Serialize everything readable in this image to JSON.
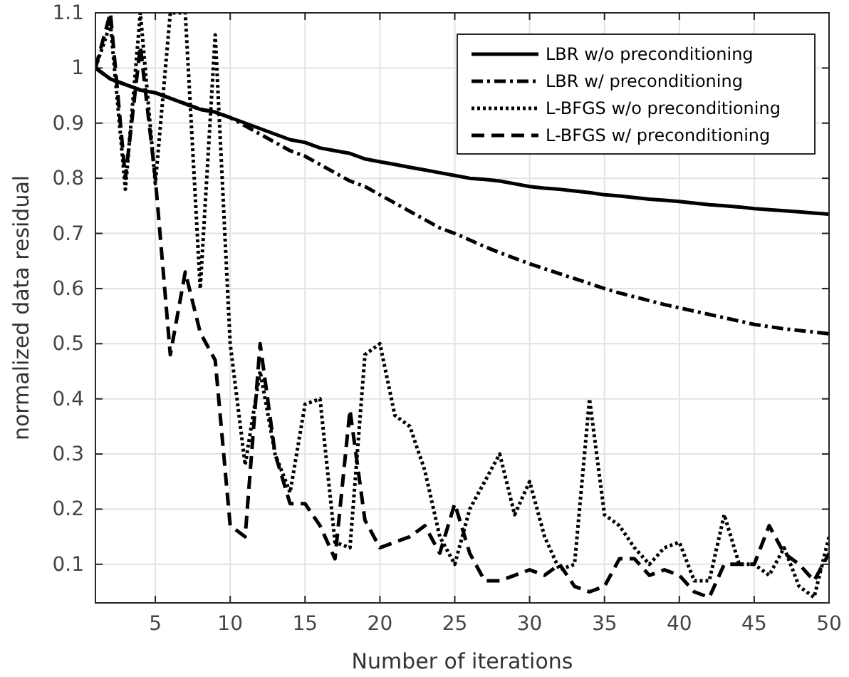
{
  "chart_data": {
    "type": "line",
    "xlabel": "Number of iterations",
    "ylabel": "normalized data residual",
    "x": [
      1,
      2,
      3,
      4,
      5,
      6,
      7,
      8,
      9,
      10,
      11,
      12,
      13,
      14,
      15,
      16,
      17,
      18,
      19,
      20,
      21,
      22,
      23,
      24,
      25,
      26,
      27,
      28,
      29,
      30,
      31,
      32,
      33,
      34,
      35,
      36,
      37,
      38,
      39,
      40,
      41,
      42,
      43,
      44,
      45,
      46,
      47,
      48,
      49,
      50
    ],
    "xlim": [
      1,
      50
    ],
    "xticks": [
      5,
      10,
      15,
      20,
      25,
      30,
      35,
      40,
      45,
      50
    ],
    "ylim": [
      0.03,
      1.1
    ],
    "yticks": [
      0.1,
      0.2,
      0.3,
      0.4,
      0.5,
      0.6,
      0.7,
      0.8,
      0.9,
      1,
      1.1
    ],
    "grid": true,
    "legend": "top right",
    "marker": "none",
    "series": [
      {
        "name": "LBR w/o preconditioning",
        "color": "#000000",
        "line_style": "solid",
        "values": [
          1,
          0.98,
          0.97,
          0.96,
          0.955,
          0.945,
          0.935,
          0.925,
          0.92,
          0.91,
          0.9,
          0.89,
          0.88,
          0.87,
          0.865,
          0.855,
          0.85,
          0.845,
          0.835,
          0.83,
          0.825,
          0.82,
          0.815,
          0.81,
          0.805,
          0.8,
          0.798,
          0.795,
          0.79,
          0.785,
          0.782,
          0.78,
          0.777,
          0.774,
          0.77,
          0.768,
          0.765,
          0.762,
          0.76,
          0.758,
          0.755,
          0.752,
          0.75,
          0.748,
          0.745,
          0.743,
          0.741,
          0.739,
          0.737,
          0.735
        ]
      },
      {
        "name": "LBR w/ preconditioning",
        "color": "#000000",
        "line_style": "dashdot",
        "values": [
          1,
          0.98,
          0.97,
          0.96,
          0.955,
          0.945,
          0.935,
          0.925,
          0.92,
          0.91,
          0.895,
          0.88,
          0.865,
          0.85,
          0.84,
          0.825,
          0.81,
          0.795,
          0.785,
          0.77,
          0.755,
          0.74,
          0.725,
          0.71,
          0.7,
          0.688,
          0.676,
          0.665,
          0.655,
          0.645,
          0.636,
          0.627,
          0.618,
          0.609,
          0.6,
          0.592,
          0.585,
          0.578,
          0.571,
          0.565,
          0.559,
          0.553,
          0.547,
          0.541,
          0.535,
          0.531,
          0.527,
          0.524,
          0.521,
          0.518
        ]
      },
      {
        "name": "L-BFGS w/o preconditioning",
        "color": "#000000",
        "line_style": "dotted",
        "values": [
          1,
          1.08,
          0.78,
          1.1,
          0.79,
          1.1,
          1.1,
          0.6,
          1.06,
          0.5,
          0.28,
          0.45,
          0.3,
          0.23,
          0.39,
          0.4,
          0.14,
          0.13,
          0.48,
          0.5,
          0.37,
          0.35,
          0.27,
          0.15,
          0.1,
          0.2,
          0.25,
          0.3,
          0.19,
          0.25,
          0.15,
          0.09,
          0.1,
          0.4,
          0.19,
          0.17,
          0.13,
          0.1,
          0.13,
          0.14,
          0.07,
          0.07,
          0.19,
          0.1,
          0.1,
          0.08,
          0.13,
          0.06,
          0.04,
          0.15
        ]
      },
      {
        "name": "L-BFGS w/ preconditioning",
        "color": "#000000",
        "line_style": "dashed",
        "values": [
          1,
          1.1,
          0.8,
          1.04,
          0.8,
          0.48,
          0.63,
          0.52,
          0.47,
          0.17,
          0.15,
          0.5,
          0.3,
          0.21,
          0.21,
          0.17,
          0.11,
          0.38,
          0.18,
          0.13,
          0.14,
          0.15,
          0.17,
          0.12,
          0.21,
          0.12,
          0.07,
          0.07,
          0.08,
          0.09,
          0.08,
          0.1,
          0.06,
          0.05,
          0.06,
          0.11,
          0.11,
          0.08,
          0.09,
          0.08,
          0.05,
          0.04,
          0.1,
          0.1,
          0.1,
          0.17,
          0.12,
          0.1,
          0.07,
          0.12
        ]
      }
    ]
  }
}
